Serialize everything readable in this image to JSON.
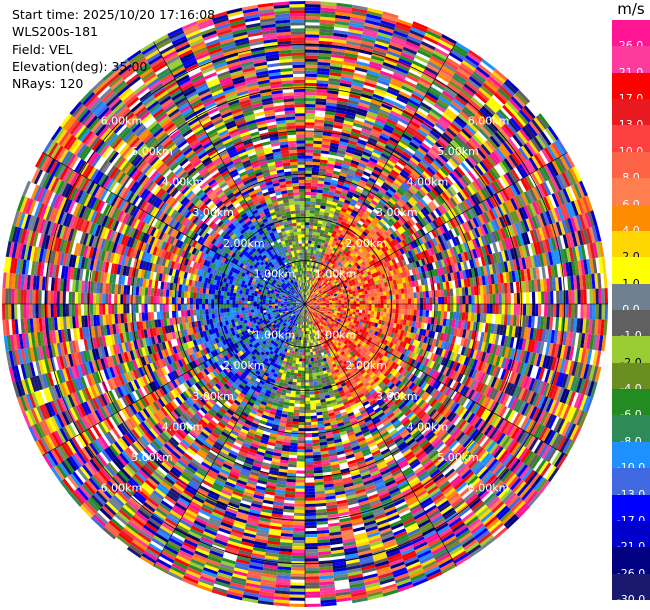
{
  "info": {
    "start_time": "Start time: 2025/10/20 17:16:08",
    "instrument": "WLS200s-181",
    "field": "Field: VEL",
    "elevation": "Elevation(deg): 35.00",
    "nrays": "NRays: 120"
  },
  "chart_data": {
    "type": "heatmap",
    "projection": "ppi-polar",
    "field": "VEL",
    "instrument": "WLS200s-181",
    "start_time": "2025/10/20 17:16:08",
    "elevation_deg": 35.0,
    "n_rays": 120,
    "range_max_km": 7.0,
    "range_rings_km": [
      1.0,
      2.0,
      3.0,
      4.0,
      5.0,
      6.0
    ],
    "ring_labels": [
      "1.00km",
      "2.00km",
      "3.00km",
      "4.00km",
      "5.00km",
      "6.00km"
    ],
    "colorbar": {
      "unit": "m/s",
      "tick_labels": [
        "26.0",
        "21.0",
        "17.0",
        "13.0",
        "10.0",
        "8.0",
        "6.0",
        "4.0",
        "2.0",
        "1.0",
        "0.0",
        "-1.0",
        "-2.0",
        "-4.0",
        "-6.0",
        "-8.0",
        "-10.0",
        "-13.0",
        "-17.0",
        "-21.0",
        "-26.0",
        "-30.0"
      ],
      "colors": [
        "#ff1493",
        "#ff3a9e",
        "#ff0000",
        "#e8191f",
        "#ff4040",
        "#ff6347",
        "#ff7f50",
        "#ff8c00",
        "#ffd700",
        "#ffff00",
        "#708090",
        "#606060",
        "#9acd32",
        "#6b8e23",
        "#228b22",
        "#2e8b57",
        "#1e90ff",
        "#4169e1",
        "#0000ff",
        "#0000cd",
        "#000080",
        "#191970"
      ]
    },
    "pattern_note_approx": {
      "near_range_max_km": 2.5,
      "negative_velocity_azimuth_deg": [
        200,
        340
      ],
      "positive_velocity_azimuth_deg": [
        20,
        160
      ],
      "near_zero_azimuth_deg": [
        [
          340,
          20
        ],
        [
          160,
          200
        ]
      ],
      "far_range": "noise"
    }
  }
}
